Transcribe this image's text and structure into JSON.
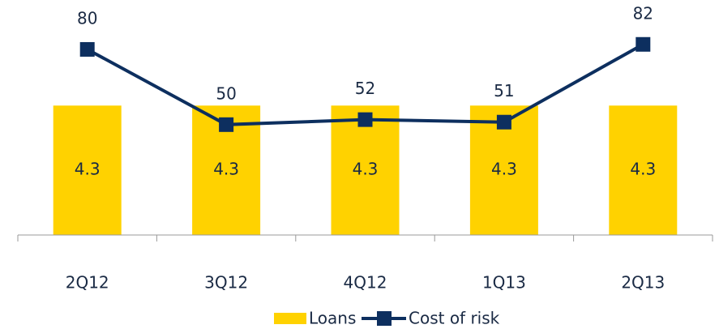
{
  "chart_data": {
    "type": "bar",
    "categories": [
      "2Q12",
      "3Q12",
      "4Q12",
      "1Q13",
      "2Q13"
    ],
    "series": [
      {
        "name": "Loans",
        "color": "#ffd200",
        "values": [
          4.3,
          4.3,
          4.3,
          4.3,
          4.3
        ]
      },
      {
        "name": "Cost of risk",
        "color": "#0d2f5f",
        "values": [
          80,
          50,
          52,
          51,
          82
        ],
        "axis": "y2"
      }
    ],
    "ylim": [
      0,
      7
    ],
    "y2lim": [
      6,
      90
    ],
    "grid": false,
    "legend": "bottom"
  }
}
